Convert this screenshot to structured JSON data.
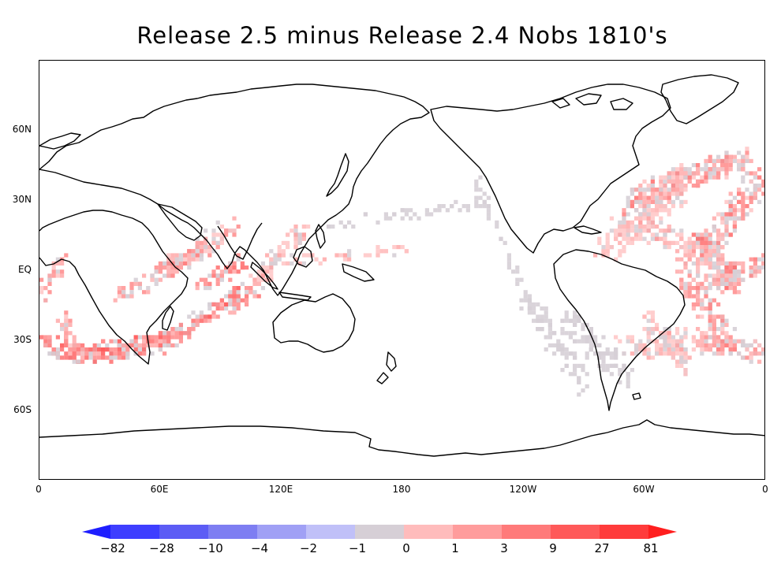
{
  "title": "Release 2.5 minus Release 2.4  Nobs 1810's",
  "lat_labels": [
    "60N",
    "30N",
    "EQ",
    "30S",
    "60S"
  ],
  "lon_labels": [
    "0",
    "60E",
    "120E",
    "180",
    "120W",
    "60W",
    "0"
  ],
  "colorbar": {
    "labels": [
      "-82",
      "-28",
      "-10",
      "-4",
      "-2",
      "-1",
      "0",
      "1",
      "3",
      "9",
      "27",
      "81"
    ],
    "colors": [
      "#1e1eff",
      "#3e3eff",
      "#5c5cf5",
      "#7e7ef2",
      "#a0a0f5",
      "#c0c0f8",
      "#d6cfd6",
      "#ffbcbc",
      "#ff9c9c",
      "#ff7a7a",
      "#ff5959",
      "#ff3b3b",
      "#ff1e1e"
    ]
  },
  "map_data": {
    "type": "heatmap",
    "projection": "cylindrical-equidistant",
    "lon_range": [
      0,
      360
    ],
    "lat_range": [
      -90,
      90
    ]
  }
}
